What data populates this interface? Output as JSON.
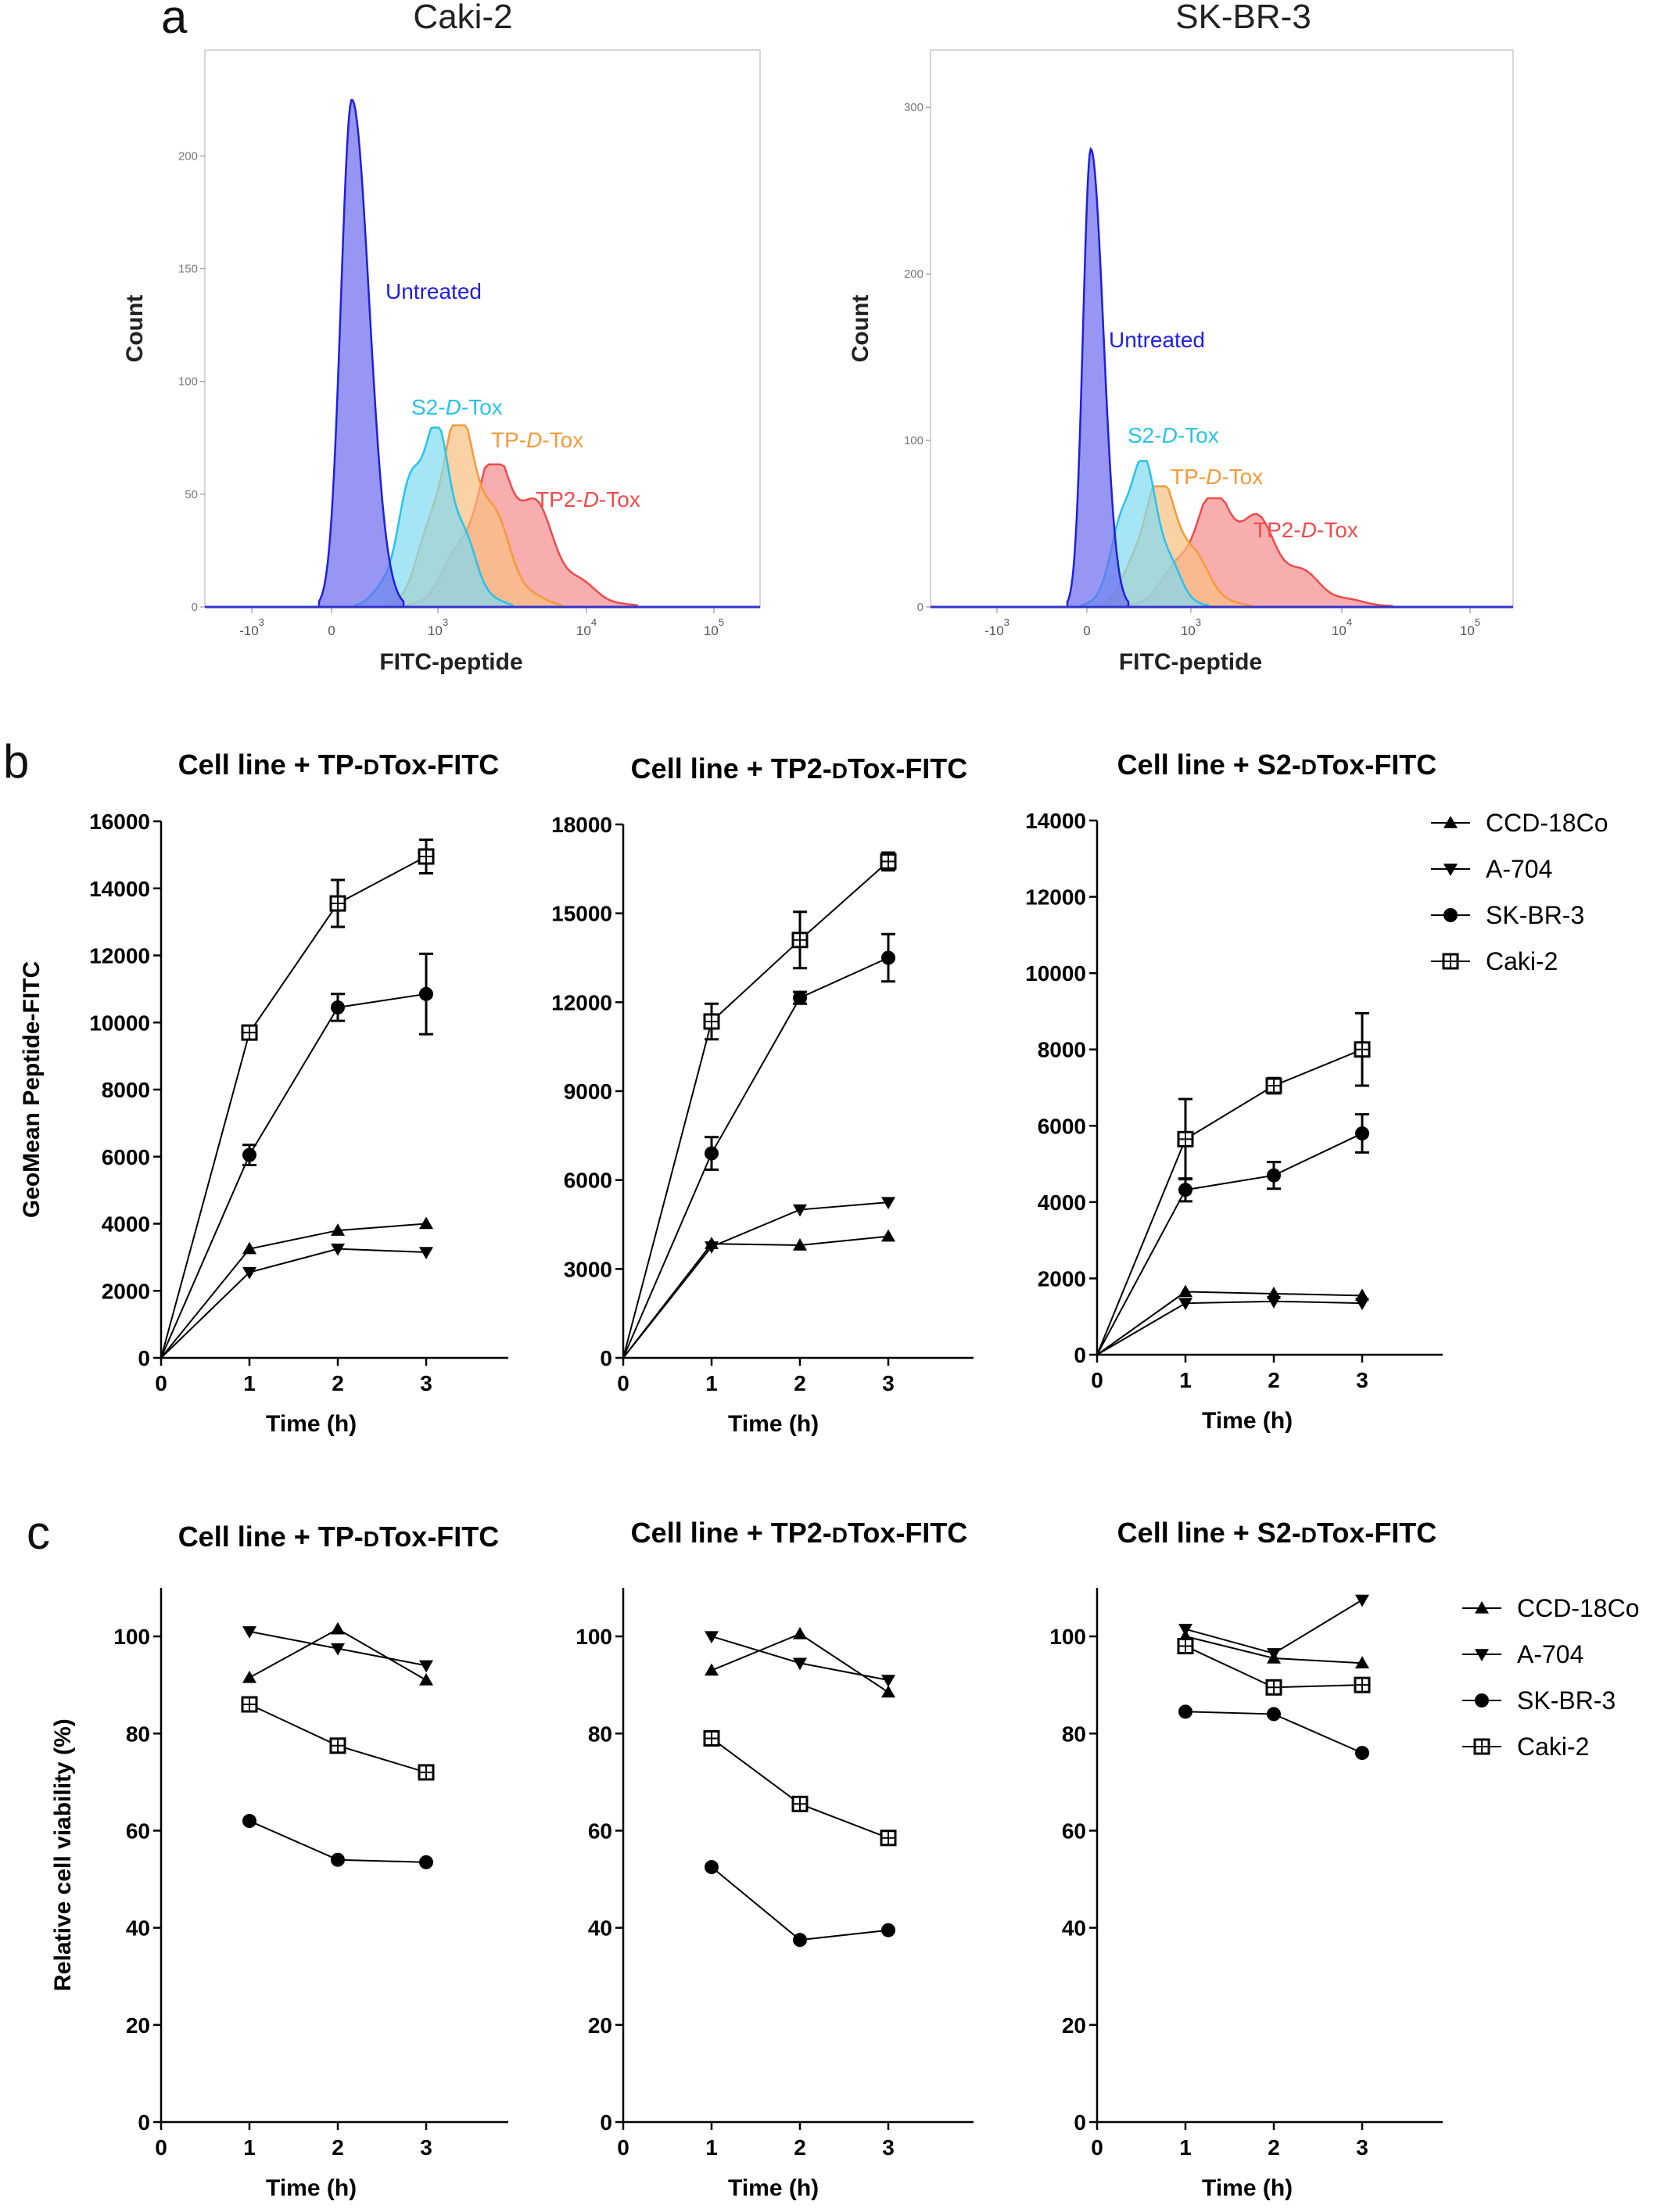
{
  "panels": {
    "a": {
      "label": "a",
      "ylabel": "Count",
      "xlabel": "FITC-peptide",
      "x_ticks": [
        "-10 3",
        "0",
        "10 3",
        "10 4",
        "10 5"
      ],
      "plots": [
        {
          "title": "Caki-2",
          "y_ticks": [
            "0",
            "50",
            "100",
            "150",
            "200"
          ],
          "ylim": [
            0,
            240
          ],
          "curves": [
            {
              "name": "Untreated",
              "color": "#1f1fe0",
              "fill": "#6b6bee",
              "peak": 225
            },
            {
              "name": "S2-D-Tox",
              "color": "#29c2ea",
              "fill": "#7fdaf2",
              "peak": 78
            },
            {
              "name": "TP-D-Tox",
              "color": "#f59a3a",
              "fill": "#f8bf80",
              "peak": 79
            },
            {
              "name": "TP2-D-Tox",
              "color": "#ee4b4b",
              "fill": "#f58b8b",
              "peak": 62
            }
          ]
        },
        {
          "title": "SK-BR-3",
          "y_ticks": [
            "0",
            "100",
            "200",
            "300"
          ],
          "ylim": [
            0,
            325
          ],
          "curves": [
            {
              "name": "Untreated",
              "color": "#1f1fe0",
              "fill": "#6b6bee",
              "peak": 275
            },
            {
              "name": "S2-D-Tox",
              "color": "#29c2ea",
              "fill": "#7fdaf2",
              "peak": 86
            },
            {
              "name": "TP-D-Tox",
              "color": "#f59a3a",
              "fill": "#f8bf80",
              "peak": 71
            },
            {
              "name": "TP2-D-Tox",
              "color": "#ee4b4b",
              "fill": "#f58b8b",
              "peak": 64
            }
          ]
        }
      ]
    },
    "b": {
      "label": "b",
      "ylabel": "GeoMean Peptide-FITC",
      "xlabel": "Time (h)"
    },
    "c": {
      "label": "c",
      "ylabel": "Relative cell viability (%)",
      "xlabel": "Time (h)"
    }
  },
  "legend": [
    "CCD-18Co",
    "A-704",
    "SK-BR-3",
    "Caki-2"
  ],
  "chart_data": [
    {
      "type": "area",
      "panel": "a",
      "title": "Caki-2",
      "xlabel": "FITC-peptide",
      "ylabel": "Count",
      "xscale": "biexponential",
      "series": [
        {
          "name": "Untreated",
          "peak_x": 200,
          "peak_count": 225
        },
        {
          "name": "S2-D-Tox",
          "peak_x": 900,
          "peak_count": 78
        },
        {
          "name": "TP-D-Tox",
          "peak_x": 1400,
          "peak_count": 79
        },
        {
          "name": "TP2-D-Tox",
          "peak_x": 3000,
          "peak_count": 62
        }
      ]
    },
    {
      "type": "area",
      "panel": "a",
      "title": "SK-BR-3",
      "xlabel": "FITC-peptide",
      "ylabel": "Count",
      "xscale": "biexponential",
      "series": [
        {
          "name": "Untreated",
          "peak_x": 0,
          "peak_count": 275
        },
        {
          "name": "S2-D-Tox",
          "peak_x": 500,
          "peak_count": 86
        },
        {
          "name": "TP-D-Tox",
          "peak_x": 700,
          "peak_count": 71
        },
        {
          "name": "TP2-D-Tox",
          "peak_x": 1800,
          "peak_count": 64
        }
      ]
    },
    {
      "type": "line",
      "panel": "b",
      "title": "Cell line + TP-DTox-FITC",
      "xlabel": "Time (h)",
      "ylabel": "GeoMean Peptide-FITC",
      "x": [
        0,
        1,
        2,
        3
      ],
      "xticks": [
        "0",
        "1",
        "2",
        "3"
      ],
      "ylim": [
        0,
        16000
      ],
      "yticks": [
        "0",
        "2000",
        "4000",
        "6000",
        "8000",
        "10000",
        "12000",
        "14000",
        "16000"
      ],
      "series": [
        {
          "name": "CCD-18Co",
          "marker": "triangle-up",
          "values": [
            0,
            3250,
            3800,
            4000
          ],
          "err": [
            0,
            0,
            0,
            0
          ]
        },
        {
          "name": "A-704",
          "marker": "triangle-down",
          "values": [
            0,
            2550,
            3250,
            3150
          ],
          "err": [
            0,
            0,
            0,
            0
          ]
        },
        {
          "name": "SK-BR-3",
          "marker": "circle",
          "values": [
            0,
            6050,
            10450,
            10850
          ],
          "err": [
            0,
            300,
            400,
            1200
          ]
        },
        {
          "name": "Caki-2",
          "marker": "square",
          "values": [
            0,
            9700,
            13550,
            14950
          ],
          "err": [
            0,
            100,
            700,
            500
          ]
        }
      ]
    },
    {
      "type": "line",
      "panel": "b",
      "title": "Cell line + TP2-DTox-FITC",
      "xlabel": "Time (h)",
      "ylabel": "",
      "x": [
        0,
        1,
        2,
        3
      ],
      "xticks": [
        "0",
        "1",
        "2",
        "3"
      ],
      "ylim": [
        0,
        18000
      ],
      "yticks": [
        "0",
        "3000",
        "6000",
        "9000",
        "12000",
        "15000",
        "18000"
      ],
      "series": [
        {
          "name": "CCD-18Co",
          "marker": "triangle-up",
          "values": [
            0,
            3850,
            3800,
            4100
          ],
          "err": [
            0,
            0,
            0,
            0
          ]
        },
        {
          "name": "A-704",
          "marker": "triangle-down",
          "values": [
            0,
            3750,
            5000,
            5250
          ],
          "err": [
            0,
            0,
            0,
            0
          ]
        },
        {
          "name": "SK-BR-3",
          "marker": "circle",
          "values": [
            0,
            6900,
            12150,
            13500
          ],
          "err": [
            0,
            550,
            200,
            800
          ]
        },
        {
          "name": "Caki-2",
          "marker": "square",
          "values": [
            0,
            11350,
            14100,
            16750
          ],
          "err": [
            0,
            600,
            950,
            300
          ]
        }
      ]
    },
    {
      "type": "line",
      "panel": "b",
      "title": "Cell line + S2-DTox-FITC",
      "xlabel": "Time (h)",
      "ylabel": "",
      "x": [
        0,
        1,
        2,
        3
      ],
      "xticks": [
        "0",
        "1",
        "2",
        "3"
      ],
      "ylim": [
        0,
        14000
      ],
      "yticks": [
        "0",
        "2000",
        "4000",
        "6000",
        "8000",
        "10000",
        "12000",
        "14000"
      ],
      "series": [
        {
          "name": "CCD-18Co",
          "marker": "triangle-up",
          "values": [
            0,
            1650,
            1600,
            1550
          ],
          "err": [
            0,
            0,
            0,
            0
          ]
        },
        {
          "name": "A-704",
          "marker": "triangle-down",
          "values": [
            0,
            1350,
            1400,
            1350
          ],
          "err": [
            0,
            0,
            0,
            0
          ]
        },
        {
          "name": "SK-BR-3",
          "marker": "circle",
          "values": [
            0,
            4320,
            4700,
            5800
          ],
          "err": [
            0,
            300,
            350,
            500
          ]
        },
        {
          "name": "Caki-2",
          "marker": "square",
          "values": [
            0,
            5650,
            7050,
            8000
          ],
          "err": [
            0,
            1050,
            200,
            950
          ]
        }
      ]
    },
    {
      "type": "line",
      "panel": "c",
      "title": "Cell line + TP-DTox-FITC",
      "xlabel": "Time (h)",
      "ylabel": "Relative cell viability (%)",
      "x": [
        1,
        2,
        3
      ],
      "xticks": [
        "0",
        "1",
        "2",
        "3"
      ],
      "ylim": [
        0,
        110
      ],
      "yticks": [
        "0",
        "20",
        "40",
        "60",
        "80",
        "100"
      ],
      "series": [
        {
          "name": "CCD-18Co",
          "marker": "triangle-up",
          "values": [
            91.5,
            101.5,
            91
          ]
        },
        {
          "name": "A-704",
          "marker": "triangle-down",
          "values": [
            101,
            97.5,
            94
          ]
        },
        {
          "name": "SK-BR-3",
          "marker": "circle",
          "values": [
            62,
            54,
            53.5
          ]
        },
        {
          "name": "Caki-2",
          "marker": "square",
          "values": [
            86,
            77.5,
            72
          ]
        }
      ]
    },
    {
      "type": "line",
      "panel": "c",
      "title": "Cell line + TP2-DTox-FITC",
      "xlabel": "Time (h)",
      "ylabel": "",
      "x": [
        1,
        2,
        3
      ],
      "xticks": [
        "0",
        "1",
        "2",
        "3"
      ],
      "ylim": [
        0,
        110
      ],
      "yticks": [
        "0",
        "20",
        "40",
        "60",
        "80",
        "100"
      ],
      "series": [
        {
          "name": "CCD-18Co",
          "marker": "triangle-up",
          "values": [
            93,
            100.5,
            88.5
          ]
        },
        {
          "name": "A-704",
          "marker": "triangle-down",
          "values": [
            100,
            94.5,
            91
          ]
        },
        {
          "name": "SK-BR-3",
          "marker": "circle",
          "values": [
            52.5,
            37.5,
            39.5
          ]
        },
        {
          "name": "Caki-2",
          "marker": "square",
          "values": [
            79,
            65.5,
            58.5
          ]
        }
      ]
    },
    {
      "type": "line",
      "panel": "c",
      "title": "Cell line + S2-DTox-FITC",
      "xlabel": "Time (h)",
      "ylabel": "",
      "x": [
        1,
        2,
        3
      ],
      "xticks": [
        "0",
        "1",
        "2",
        "3"
      ],
      "ylim": [
        0,
        110
      ],
      "yticks": [
        "0",
        "20",
        "40",
        "60",
        "80",
        "100"
      ],
      "series": [
        {
          "name": "CCD-18Co",
          "marker": "triangle-up",
          "values": [
            100,
            95.5,
            94.5
          ]
        },
        {
          "name": "A-704",
          "marker": "triangle-down",
          "values": [
            101.5,
            96.5,
            107.5
          ]
        },
        {
          "name": "SK-BR-3",
          "marker": "circle",
          "values": [
            84.5,
            84,
            76
          ]
        },
        {
          "name": "Caki-2",
          "marker": "square",
          "values": [
            98,
            89.5,
            90
          ]
        }
      ]
    }
  ]
}
